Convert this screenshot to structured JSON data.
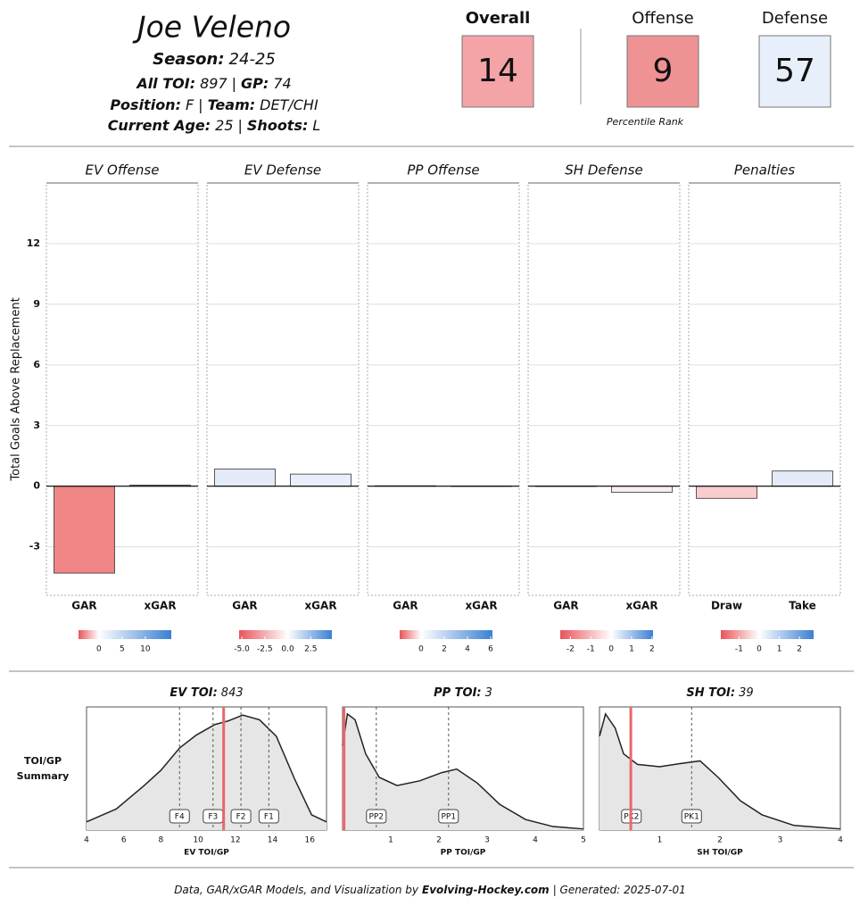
{
  "header": {
    "name": "Joe Veleno",
    "separator": "|",
    "lines": [
      [
        {
          "label": "Season:",
          "value": "24-25"
        }
      ],
      [
        {
          "label": "All TOI:",
          "value": "897"
        },
        {
          "label": "GP:",
          "value": "74"
        }
      ],
      [
        {
          "label": "Position:",
          "value": "F"
        },
        {
          "label": "Team:",
          "value": "DET/CHI"
        }
      ],
      [
        {
          "label": "Current Age:",
          "value": "25"
        },
        {
          "label": "Shoots:",
          "value": "L"
        }
      ]
    ]
  },
  "scores": {
    "note": "Percentile Rank",
    "items": [
      {
        "label": "Overall",
        "value": 14,
        "color": "#f4a3a7"
      },
      {
        "label": "Offense",
        "value": 9,
        "color": "#ef9294"
      },
      {
        "label": "Defense",
        "value": 57,
        "color": "#e7effa"
      }
    ]
  },
  "chart_data": [
    {
      "type": "bar",
      "y_label": "Total Goals Above Replacement",
      "ylim": [
        -5.4,
        15
      ],
      "yticks": [
        -3,
        0,
        3,
        6,
        9,
        12
      ],
      "grid": true,
      "scale_colors": [
        "#e8555a",
        "#ffffff",
        "#3c7fd4"
      ],
      "facets": [
        {
          "title": "EV Offense",
          "categories": [
            "GAR",
            "xGAR"
          ],
          "values": [
            -4.3,
            0.05
          ],
          "colors": [
            "#ef8585",
            "#f7f8fd"
          ],
          "scale": {
            "lim": [
              -4.4,
              15.6
            ],
            "ticks": [
              0,
              5,
              10
            ]
          }
        },
        {
          "title": "EV Defense",
          "categories": [
            "GAR",
            "xGAR"
          ],
          "values": [
            0.85,
            0.6
          ],
          "colors": [
            "#e3eaf8",
            "#e9effa"
          ],
          "scale": {
            "lim": [
              -5.3,
              4.8
            ],
            "ticks": [
              {
                "value": -5,
                "label": "-5.0"
              },
              {
                "value": -2.5,
                "label": "-2.5"
              },
              {
                "value": 0,
                "label": "0.0"
              },
              {
                "value": 2.5,
                "label": "2.5"
              }
            ]
          }
        },
        {
          "title": "PP Offense",
          "categories": [
            "GAR",
            "xGAR"
          ],
          "values": [
            0.02,
            0.01
          ],
          "colors": [
            "#fdfdfe",
            "#fdfdfe"
          ],
          "scale": {
            "lim": [
              -1.85,
              6.15
            ],
            "ticks": [
              0,
              2,
              4,
              6
            ]
          }
        },
        {
          "title": "SH Defense",
          "categories": [
            "GAR",
            "xGAR"
          ],
          "values": [
            0.01,
            -0.3
          ],
          "colors": [
            "#fdfdfe",
            "#f8eef0"
          ],
          "scale": {
            "lim": [
              -2.5,
              2.05
            ],
            "ticks": [
              -2,
              -1,
              0,
              1,
              2
            ]
          }
        },
        {
          "title": "Penalties",
          "categories": [
            "Draw",
            "Take"
          ],
          "values": [
            -0.6,
            0.75
          ],
          "colors": [
            "#f9cccd",
            "#e3ebf8"
          ],
          "scale": {
            "lim": [
              -1.9,
              2.7
            ],
            "ticks": [
              -1,
              0,
              1,
              2
            ]
          }
        }
      ]
    },
    {
      "type": "density",
      "side_label": [
        "TOI/GP",
        "Summary"
      ],
      "fill": "#e6e6e6",
      "player_color": "#e8676b",
      "panels": [
        {
          "title": "EV TOI:",
          "total": 843,
          "x_label": "EV TOI/GP",
          "xlim": [
            4,
            16.9
          ],
          "xticks": [
            4,
            6,
            8,
            10,
            12,
            14,
            16
          ],
          "ylim": [
            0,
            1.05
          ],
          "density": {
            "x": [
              4.0,
              5.6,
              7.1,
              8.0,
              9.0,
              9.9,
              10.9,
              11.6,
              12.4,
              13.3,
              14.2,
              15.2,
              16.1,
              16.9
            ],
            "y": [
              0.07,
              0.18,
              0.38,
              0.51,
              0.7,
              0.81,
              0.9,
              0.93,
              0.98,
              0.94,
              0.8,
              0.43,
              0.13,
              0.07
            ]
          },
          "markers": [
            {
              "label": "F4",
              "value": 9.0
            },
            {
              "label": "F3",
              "value": 10.8
            },
            {
              "label": "F2",
              "value": 12.3
            },
            {
              "label": "F1",
              "value": 13.8
            }
          ],
          "player": 11.37
        },
        {
          "title": "PP TOI:",
          "total": 3,
          "x_label": "PP TOI/GP",
          "xlim": [
            0,
            5
          ],
          "xticks": [
            1,
            2,
            3,
            4,
            5
          ],
          "ylim": [
            0,
            1.05
          ],
          "density": {
            "x": [
              0,
              0.1,
              0.26,
              0.48,
              0.76,
              1.13,
              1.6,
              2.06,
              2.37,
              2.8,
              3.26,
              3.8,
              4.37,
              5
            ],
            "y": [
              0.72,
              0.99,
              0.94,
              0.65,
              0.45,
              0.38,
              0.42,
              0.49,
              0.52,
              0.4,
              0.22,
              0.09,
              0.03,
              0.01
            ]
          },
          "markers": [
            {
              "label": "PP2",
              "value": 0.7
            },
            {
              "label": "PP1",
              "value": 2.2
            }
          ],
          "player": 0.03
        },
        {
          "title": "SH TOI:",
          "total": 39,
          "x_label": "SH TOI/GP",
          "xlim": [
            0,
            4
          ],
          "xticks": [
            1,
            2,
            3,
            4
          ],
          "ylim": [
            0,
            1.05
          ],
          "density": {
            "x": [
              0,
              0.1,
              0.26,
              0.4,
              0.63,
              1.0,
              1.38,
              1.67,
              1.97,
              2.34,
              2.7,
              3.23,
              4
            ],
            "y": [
              0.8,
              0.99,
              0.87,
              0.65,
              0.56,
              0.54,
              0.57,
              0.59,
              0.45,
              0.25,
              0.13,
              0.04,
              0.01
            ]
          },
          "markers": [
            {
              "label": "PK2",
              "value": 0.53
            },
            {
              "label": "PK1",
              "value": 1.53
            }
          ],
          "player": 0.52
        }
      ]
    }
  ],
  "footer": {
    "text": "Data, GAR/xGAR Models, and Visualization by",
    "site": "Evolving-Hockey.com",
    "generated": "| Generated: 2025-07-01"
  }
}
